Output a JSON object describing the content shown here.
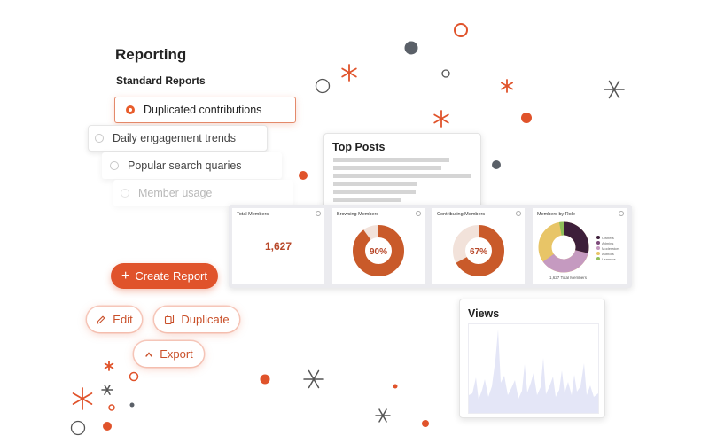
{
  "reporting": {
    "title": "Reporting",
    "section": "Standard Reports",
    "options": [
      {
        "label": "Duplicated contributions",
        "selected": true
      },
      {
        "label": "Daily engagement trends",
        "selected": false
      },
      {
        "label": "Popular search quaries",
        "selected": false
      },
      {
        "label": "Member usage",
        "selected": false
      }
    ]
  },
  "actions": {
    "create": "Create Report",
    "edit": "Edit",
    "duplicate": "Duplicate",
    "export": "Export"
  },
  "top_posts": {
    "title": "Top Posts"
  },
  "dashboard": {
    "total_members": {
      "title": "Total Members",
      "value": "1,627"
    },
    "browsing_members": {
      "title": "Browsing Members",
      "percent_label": "90%",
      "percent": 90
    },
    "contributing_members": {
      "title": "Contributing Members",
      "percent_label": "67%",
      "percent": 67
    },
    "members_by_role": {
      "title": "Members by Role",
      "footer": "1,627 Total Members",
      "legend": [
        "Owners",
        "Admins",
        "Moderators",
        "Authors",
        "Learners"
      ]
    }
  },
  "views": {
    "title": "Views"
  },
  "colors": {
    "accent": "#e0532b",
    "donut": "#c95a2a",
    "donut_track": "#f2e2da",
    "role_colors": [
      "#3d1f3a",
      "#7d4a7a",
      "#c59ac0",
      "#e8c567",
      "#8fbf5a"
    ],
    "sparkle_orange": "#e0532b",
    "sparkle_gray": "#555555"
  }
}
